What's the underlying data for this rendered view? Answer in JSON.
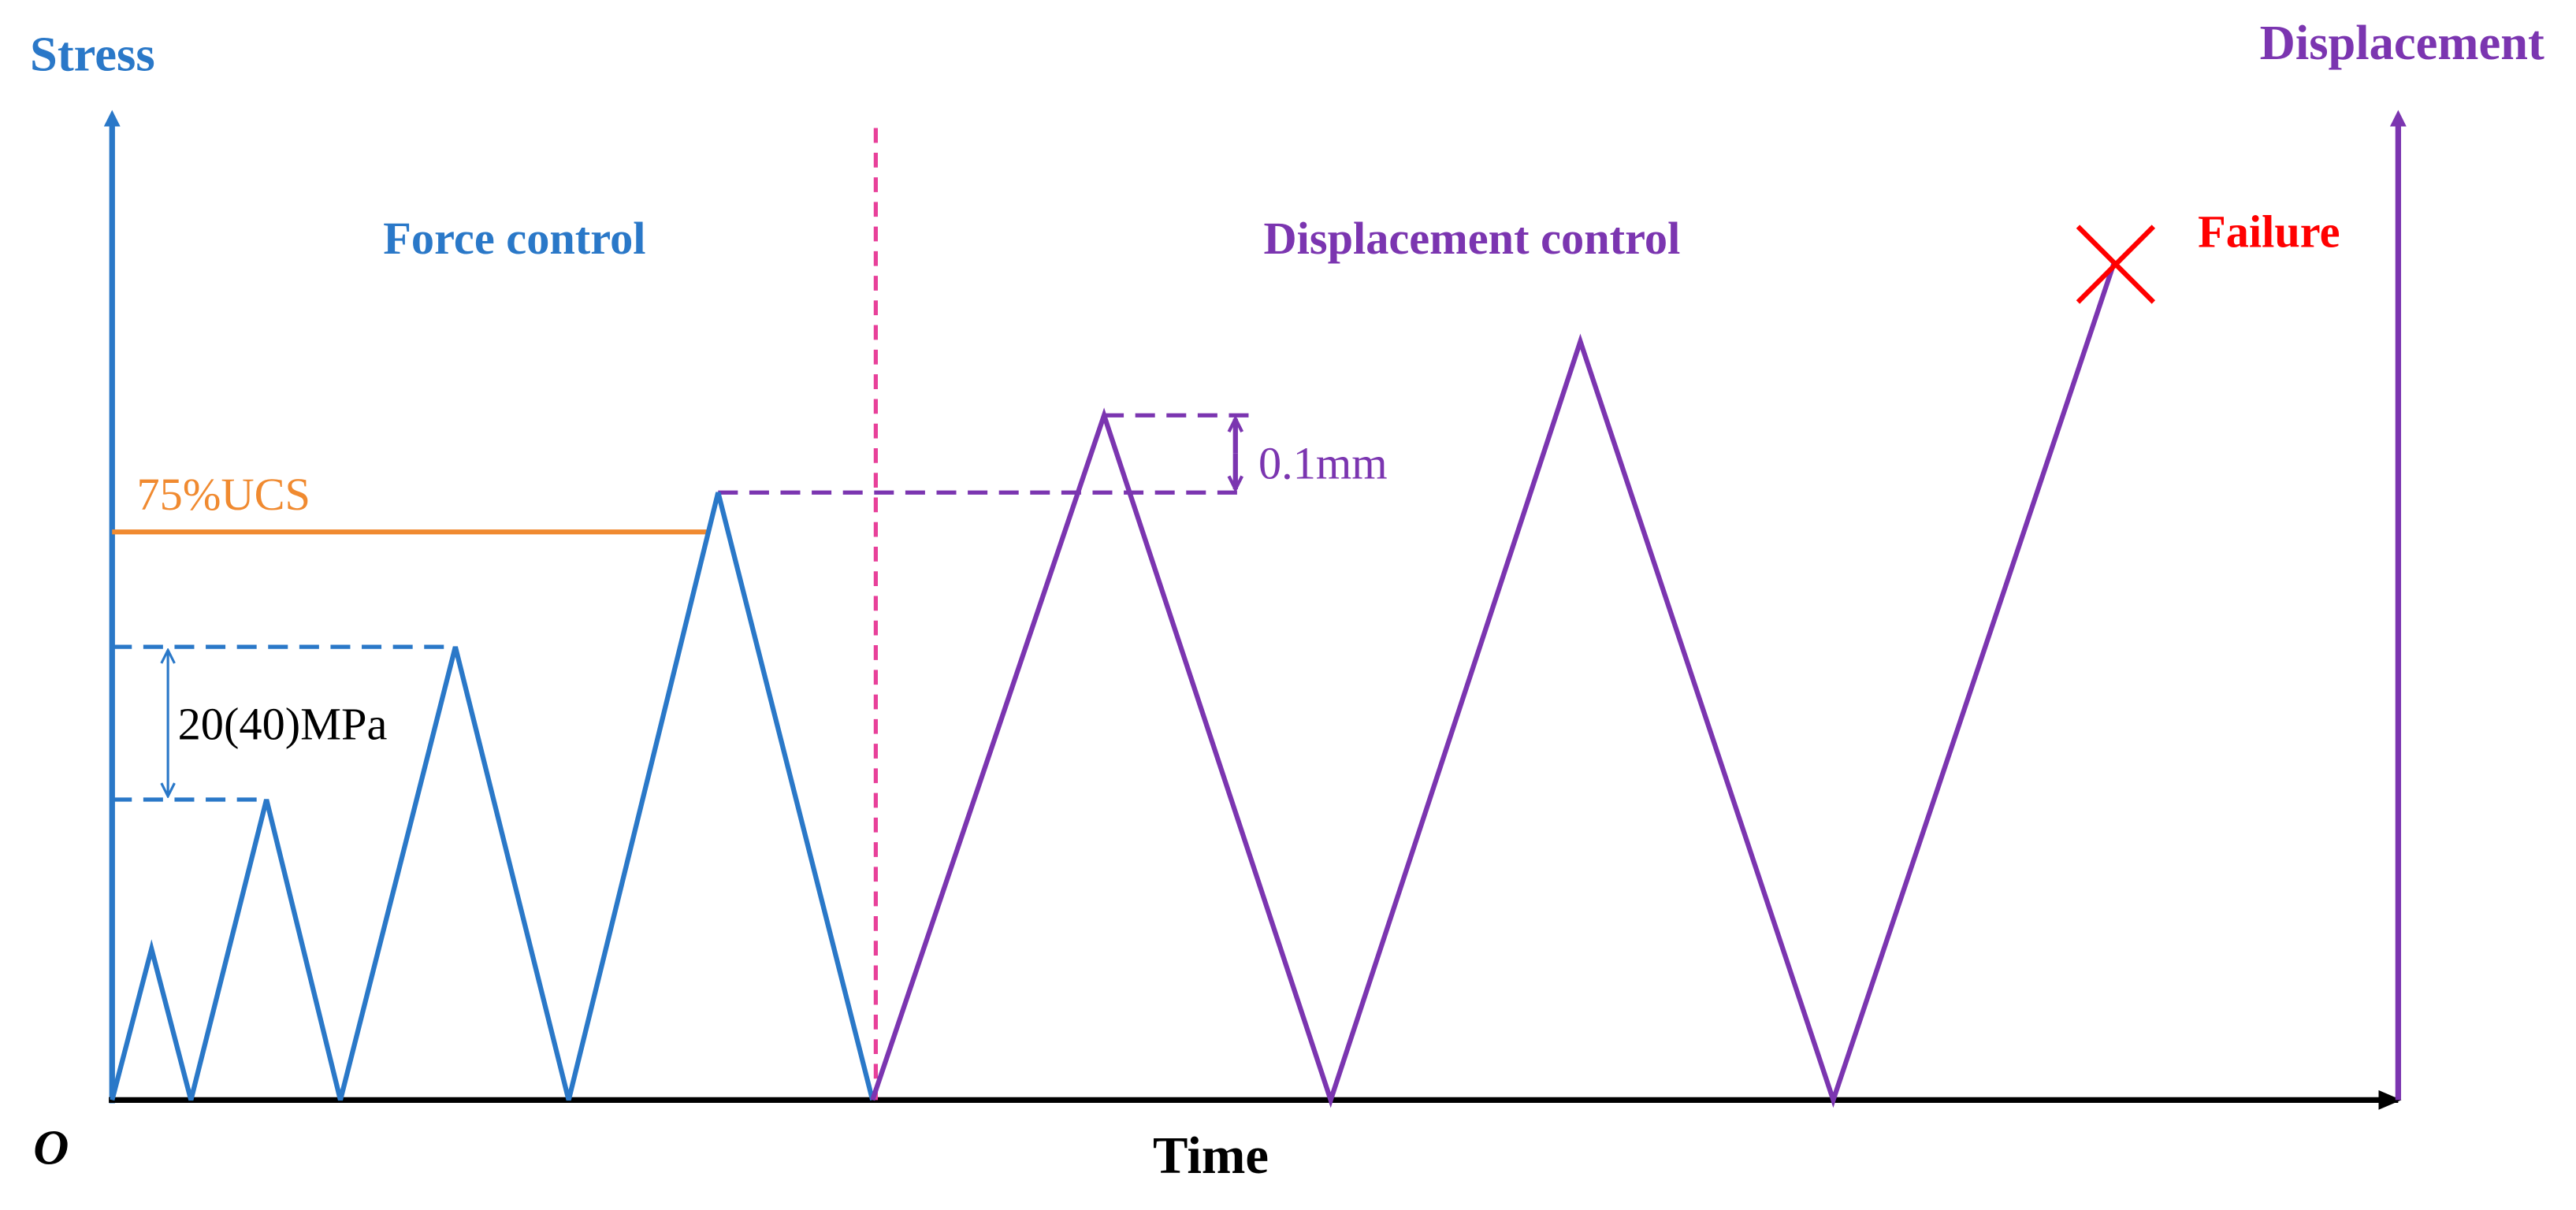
{
  "axes": {
    "y_left": "Stress",
    "y_right": "Displacement",
    "x": "Time",
    "origin": "O"
  },
  "phases": {
    "force": "Force control",
    "displacement": "Displacement control"
  },
  "annotations": {
    "failure": "Failure",
    "threshold": "75%UCS",
    "stress_step": "20(40)MPa",
    "displacement_step": "0.1mm"
  }
}
